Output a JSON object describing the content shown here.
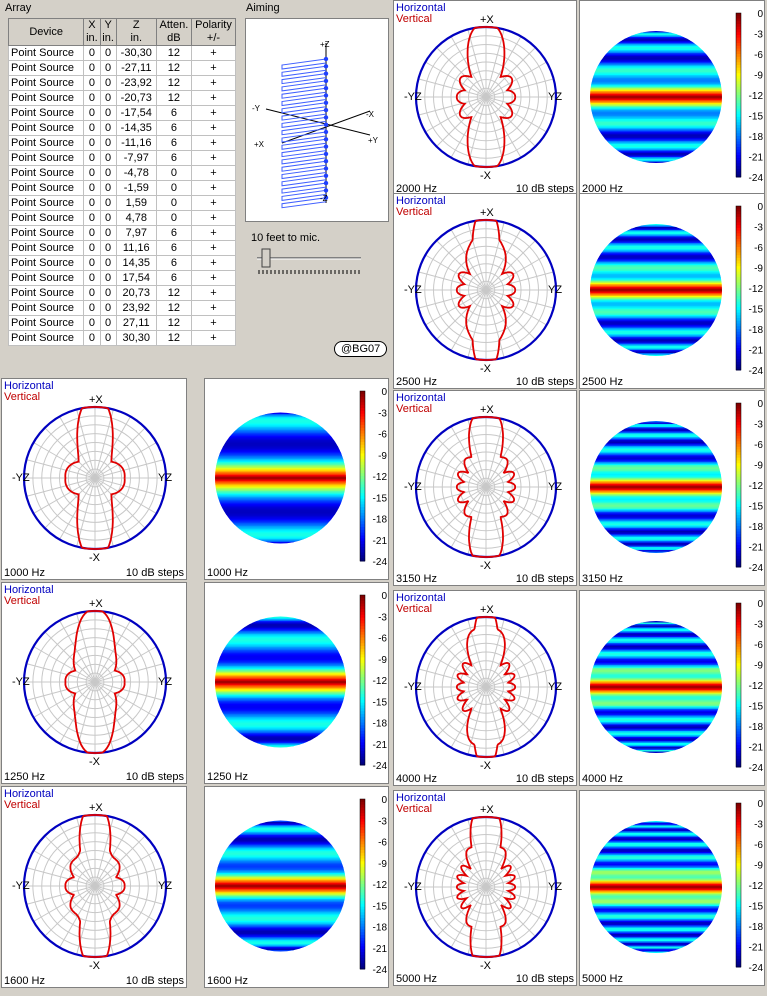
{
  "array": {
    "title": "Array",
    "headers": [
      {
        "top": "Device",
        "bottom": ""
      },
      {
        "top": "X",
        "bottom": "in."
      },
      {
        "top": "Y",
        "bottom": "in."
      },
      {
        "top": "Z",
        "bottom": "in."
      },
      {
        "top": "Atten.",
        "bottom": "dB"
      },
      {
        "top": "Polarity",
        "bottom": "+/-"
      }
    ],
    "rows": [
      [
        "Point Source",
        "0",
        "0",
        "-30,30",
        "12",
        "+"
      ],
      [
        "Point Source",
        "0",
        "0",
        "-27,11",
        "12",
        "+"
      ],
      [
        "Point Source",
        "0",
        "0",
        "-23,92",
        "12",
        "+"
      ],
      [
        "Point Source",
        "0",
        "0",
        "-20,73",
        "12",
        "+"
      ],
      [
        "Point Source",
        "0",
        "0",
        "-17,54",
        "6",
        "+"
      ],
      [
        "Point Source",
        "0",
        "0",
        "-14,35",
        "6",
        "+"
      ],
      [
        "Point Source",
        "0",
        "0",
        "-11,16",
        "6",
        "+"
      ],
      [
        "Point Source",
        "0",
        "0",
        "-7,97",
        "6",
        "+"
      ],
      [
        "Point Source",
        "0",
        "0",
        "-4,78",
        "0",
        "+"
      ],
      [
        "Point Source",
        "0",
        "0",
        "-1,59",
        "0",
        "+"
      ],
      [
        "Point Source",
        "0",
        "0",
        "1,59",
        "0",
        "+"
      ],
      [
        "Point Source",
        "0",
        "0",
        "4,78",
        "0",
        "+"
      ],
      [
        "Point Source",
        "0",
        "0",
        "7,97",
        "6",
        "+"
      ],
      [
        "Point Source",
        "0",
        "0",
        "11,16",
        "6",
        "+"
      ],
      [
        "Point Source",
        "0",
        "0",
        "14,35",
        "6",
        "+"
      ],
      [
        "Point Source",
        "0",
        "0",
        "17,54",
        "6",
        "+"
      ],
      [
        "Point Source",
        "0",
        "0",
        "20,73",
        "12",
        "+"
      ],
      [
        "Point Source",
        "0",
        "0",
        "23,92",
        "12",
        "+"
      ],
      [
        "Point Source",
        "0",
        "0",
        "27,11",
        "12",
        "+"
      ],
      [
        "Point Source",
        "0",
        "0",
        "30,30",
        "12",
        "+"
      ]
    ]
  },
  "aiming": {
    "title": "Aiming",
    "axes": {
      "pz": "+Z",
      "mz": "-Z",
      "my": "-Y",
      "py": "+Y",
      "mx": "-X",
      "px": "+X"
    }
  },
  "distance": {
    "label": "10 feet to mic.",
    "value": 0.05
  },
  "badge": "@BG07",
  "polar_legend": {
    "horizontal": "Horizontal",
    "vertical": "Vertical",
    "top": "+X",
    "bottom": "-X",
    "left": "-YZ",
    "right": "YZ",
    "steps": "10 dB steps"
  },
  "colors": {
    "horizontal": "#0000c0",
    "vertical": "#e00000"
  },
  "colorbar_ticks": [
    "0",
    "-3",
    "-6",
    "-9",
    "-12",
    "-15",
    "-18",
    "-21",
    "-24"
  ],
  "frequencies": [
    {
      "label": "1000 Hz",
      "lobes": 2
    },
    {
      "label": "1250 Hz",
      "lobes": 3
    },
    {
      "label": "1600 Hz",
      "lobes": 4
    },
    {
      "label": "2000 Hz",
      "lobes": 5
    },
    {
      "label": "2500 Hz",
      "lobes": 6
    },
    {
      "label": "3150 Hz",
      "lobes": 7
    },
    {
      "label": "4000 Hz",
      "lobes": 8
    },
    {
      "label": "5000 Hz",
      "lobes": 9
    }
  ]
}
